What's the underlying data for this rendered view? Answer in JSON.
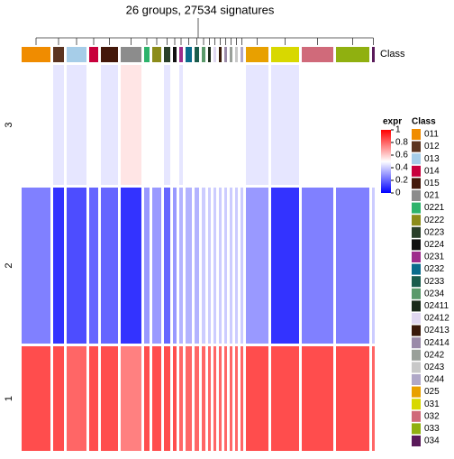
{
  "chart_data": {
    "type": "heatmap",
    "title": "26 groups, 27534 signatures",
    "annotation_label": "Class",
    "row_groups": [
      "3",
      "2",
      "1"
    ],
    "categories": [
      "011",
      "012",
      "013",
      "014",
      "015",
      "021",
      "0221",
      "0222",
      "0223",
      "0224",
      "0231",
      "0232",
      "0233",
      "0234",
      "02411",
      "02412",
      "02413",
      "02414",
      "0242",
      "0243",
      "0244",
      "025",
      "031",
      "032",
      "033",
      "034"
    ],
    "class_colors": [
      "#f08c00",
      "#5c3420",
      "#a6cde8",
      "#c8003c",
      "#44180a",
      "#8c8c8c",
      "#2db36b",
      "#8c8c1a",
      "#2a3f2a",
      "#111111",
      "#9e2c8c",
      "#0a6c8c",
      "#1a5c4c",
      "#5a9a6a",
      "#1a2a1a",
      "#e0d8f0",
      "#3a1a0a",
      "#9a8aa8",
      "#9aa09a",
      "#c8c8c8",
      "#b0a8c8",
      "#e8a000",
      "#d8d800",
      "#d06a7a",
      "#90b010",
      "#5a1a5a"
    ],
    "values": [
      [
        0.5,
        0.45,
        0.45,
        0.5,
        0.45,
        0.55,
        0.5,
        0.5,
        0.45,
        0.5,
        0.45,
        0.5,
        0.5,
        0.5,
        0.5,
        0.5,
        0.5,
        0.5,
        0.5,
        0.5,
        0.5,
        0.45,
        0.45,
        0.5,
        0.5,
        0.5
      ],
      [
        0.25,
        0.1,
        0.15,
        0.2,
        0.2,
        0.1,
        0.3,
        0.3,
        0.2,
        0.3,
        0.35,
        0.35,
        0.35,
        0.4,
        0.4,
        0.4,
        0.4,
        0.4,
        0.4,
        0.4,
        0.4,
        0.3,
        0.1,
        0.25,
        0.25,
        0.4
      ],
      [
        0.85,
        0.85,
        0.8,
        0.85,
        0.85,
        0.75,
        0.85,
        0.85,
        0.85,
        0.85,
        0.8,
        0.8,
        0.8,
        0.8,
        0.8,
        0.8,
        0.8,
        0.8,
        0.8,
        0.8,
        0.8,
        0.85,
        0.85,
        0.85,
        0.85,
        0.8
      ]
    ],
    "color_scale": {
      "title": "expr",
      "colors": [
        "#0000ff",
        "#ffffff",
        "#ff0000"
      ],
      "lim": [
        0,
        1
      ],
      "ticks": [
        0,
        0.2,
        0.4,
        0.6,
        0.8,
        1
      ]
    },
    "legend": {
      "title": "Class"
    }
  }
}
